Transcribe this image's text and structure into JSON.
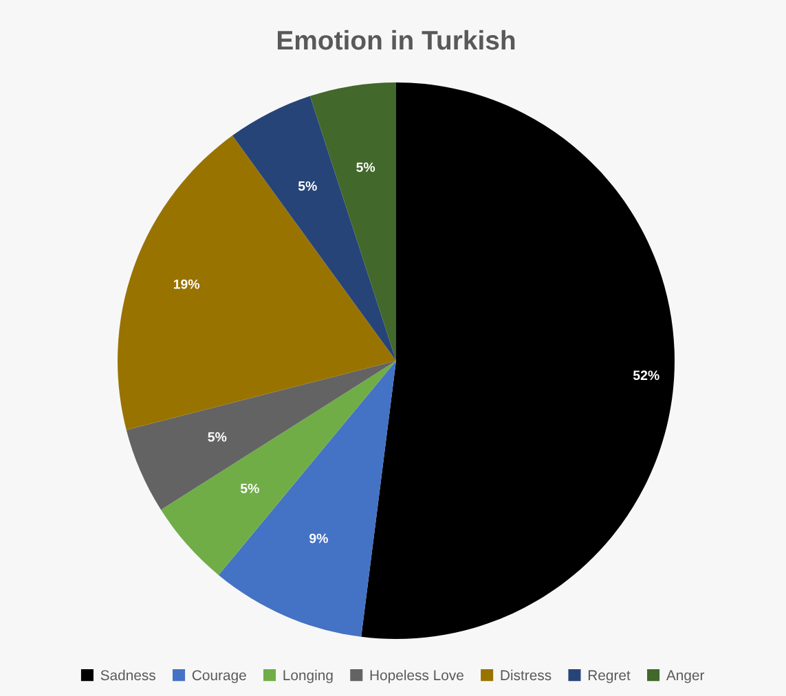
{
  "chart_data": {
    "type": "pie",
    "title": "Emotion in Turkish",
    "categories": [
      "Sadness",
      "Courage",
      "Longing",
      "Hopeless Love",
      "Distress",
      "Regret",
      "Anger"
    ],
    "values": [
      52,
      9,
      5,
      5,
      19,
      5,
      5
    ],
    "value_labels": [
      "52%",
      "9%",
      "5%",
      "5%",
      "19%",
      "5%",
      "5%"
    ],
    "colors": [
      "#000000",
      "#4472c4",
      "#70ad47",
      "#636363",
      "#997300",
      "#264478",
      "#43682b"
    ],
    "legend": "bottom"
  }
}
